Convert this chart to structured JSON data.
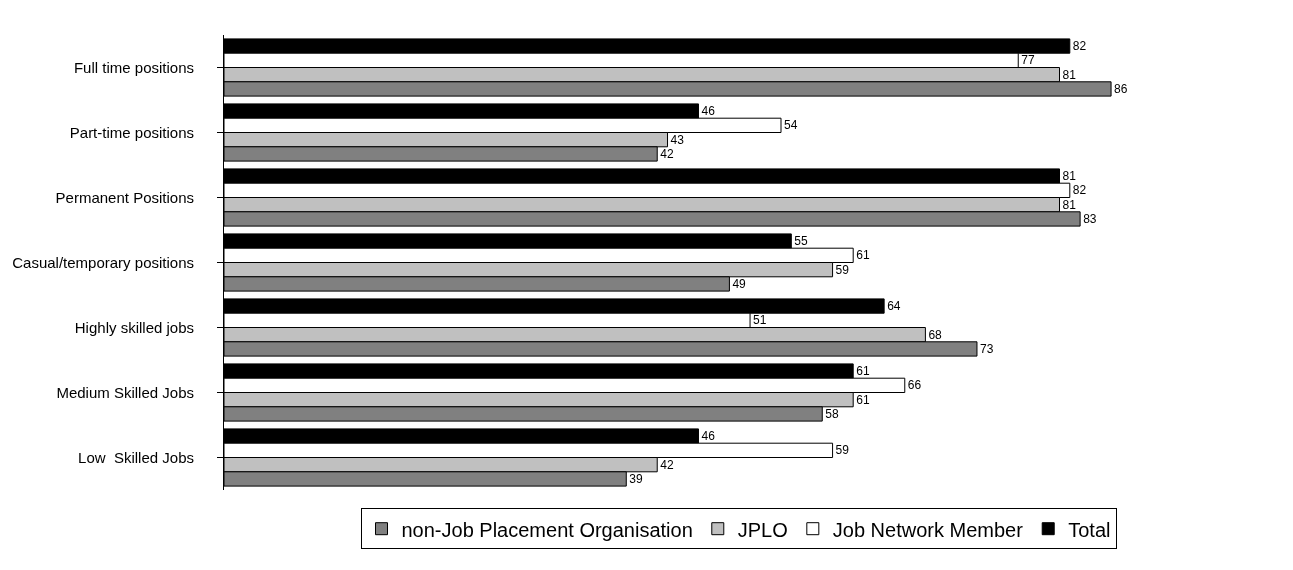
{
  "chart_data": {
    "type": "bar",
    "orientation": "horizontal",
    "categories": [
      "Full time positions",
      "Part-time positions",
      "Permanent Positions",
      "Casual/temporary positions",
      "Highly skilled jobs",
      "Medium Skilled Jobs",
      "Low  Skilled Jobs"
    ],
    "series": [
      {
        "name": "non-Job Placement Organisation",
        "color": "#808080",
        "values": [
          86,
          42,
          83,
          49,
          73,
          58,
          39
        ]
      },
      {
        "name": "JPLO",
        "color": "#c0c0c0",
        "values": [
          81,
          43,
          81,
          59,
          68,
          61,
          42
        ]
      },
      {
        "name": "Job Network Member",
        "color": "#ffffff",
        "values": [
          77,
          54,
          82,
          61,
          51,
          66,
          59
        ]
      },
      {
        "name": "Total",
        "color": "#000000",
        "values": [
          82,
          46,
          81,
          55,
          64,
          61,
          46
        ]
      }
    ],
    "data_labels": true,
    "legend": "bottom"
  }
}
